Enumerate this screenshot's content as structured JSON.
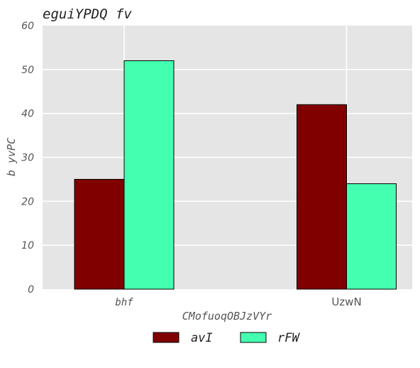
{
  "chart_data": {
    "type": "bar",
    "title": "eguiYPDQ fv",
    "xlabel": "CMofuoqOBJzVYr",
    "ylabel": "b yvPC",
    "categories": [
      "bhf",
      "UzwN"
    ],
    "series": [
      {
        "name": "avI",
        "values": [
          25,
          42
        ],
        "color": "#800000"
      },
      {
        "name": "rFW",
        "values": [
          52,
          24
        ],
        "color": "#44ffb0"
      }
    ],
    "ylim": [
      0,
      60
    ],
    "yticks": [
      0,
      10,
      20,
      30,
      40,
      50,
      60
    ],
    "grid": true,
    "legend_position": "bottom-center",
    "background_color": "#e5e5e5",
    "edge_color": "#000000"
  }
}
